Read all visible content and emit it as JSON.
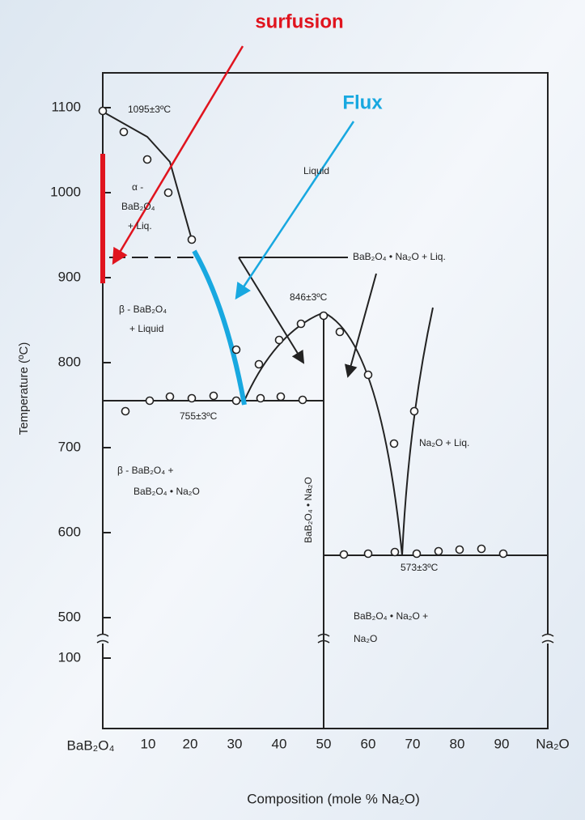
{
  "annotations": {
    "surfusion": "surfusion",
    "flux": "Flux"
  },
  "axes": {
    "y_title": "Temperature (ºC)",
    "x_title": "Composition (mole % Na₂O)",
    "y_ticks": [
      "1100",
      "1000",
      "900",
      "800",
      "700",
      "600",
      "500",
      "100"
    ],
    "x_ticks": [
      "BaB₂O₄",
      "10",
      "20",
      "30",
      "40",
      "50",
      "60",
      "70",
      "80",
      "90",
      "Na₂O"
    ]
  },
  "labels": {
    "top_melt": "1095±3ºC",
    "liquid": "Liquid",
    "alpha1": "α -",
    "alpha2": "BaB₂O₄",
    "alpha3": "+ Liq.",
    "compound_liq": "BaB₂O₄ • Na₂O + Liq.",
    "peak": "846±3ºC",
    "beta_liq1": "β - BaB₂O₄",
    "beta_liq2": "+ Liquid",
    "eutectic1": "755±3ºC",
    "na2o_liq": "Na₂O + Liq.",
    "beta_comp1": "β - BaB₂O₄ +",
    "beta_comp2": "BaB₂O₄ • Na₂O",
    "compound": "BaB₂O₄ • Na₂O",
    "eutectic2": "573±3ºC",
    "comp_na2o1": "BaB₂O₄ • Na₂O +",
    "comp_na2o2": "Na₂O"
  }
}
